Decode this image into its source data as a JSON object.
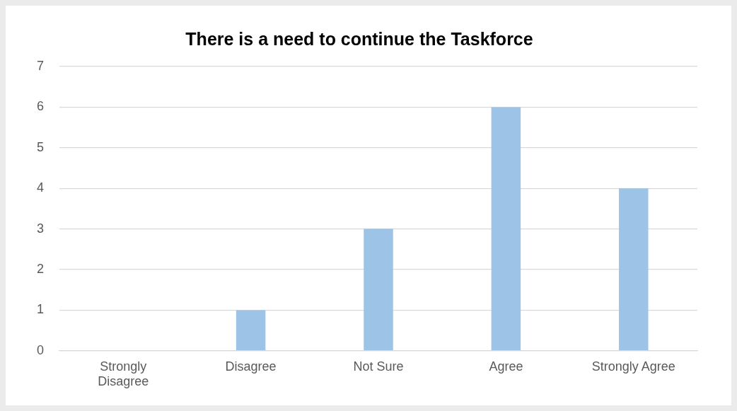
{
  "chart_data": {
    "type": "bar",
    "title": "There is a need to continue the Taskforce",
    "categories": [
      "Strongly Disagree",
      "Disagree",
      "Not Sure",
      "Agree",
      "Strongly Agree"
    ],
    "values": [
      0,
      1,
      3,
      6,
      4
    ],
    "color": "#9dc3e6",
    "ylim": [
      0,
      7
    ],
    "yticks": [
      0,
      1,
      2,
      3,
      4,
      5,
      6,
      7
    ],
    "grid": "y",
    "legend": false
  }
}
